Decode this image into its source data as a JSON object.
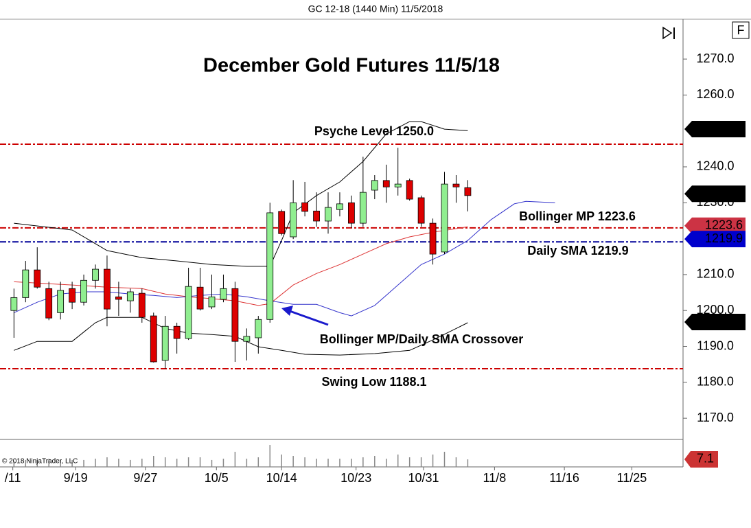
{
  "header": "GC 12-18 (1440 Min)  11/5/2018",
  "button": "F",
  "copyright": "© 2018 NinjaTrader, LLC",
  "chart_data": {
    "type": "candlestick",
    "title": "December Gold Futures 11/5/18",
    "annotations": [
      "Psyche Level 1250.0",
      "Bollinger MP 1223.6",
      "Daily SMA 1219.9",
      "Bollinger MP/Daily SMA Crossover",
      "Swing Low 1188.1"
    ],
    "x": [
      0,
      1,
      2,
      3,
      4,
      5,
      6,
      7,
      8,
      9,
      10,
      11,
      12,
      13,
      14,
      15,
      16,
      17,
      18,
      19,
      20,
      21,
      22,
      23,
      24,
      25,
      26,
      27,
      28,
      29,
      30,
      31,
      32,
      33,
      34,
      35,
      36,
      37,
      38,
      39
    ],
    "open": [
      1200.0,
      1203.6,
      1211.3,
      1206.1,
      1199.4,
      1206.1,
      1202.3,
      1208.4,
      1211.5,
      1203.8,
      1202.7,
      1204.8,
      1198.5,
      1186.1,
      1195.6,
      1192.2,
      1206.5,
      1201.0,
      1203.1,
      1206.1,
      1191.4,
      1192.4,
      1197.5,
      1227.6,
      1220.5,
      1230.0,
      1227.7,
      1224.9,
      1228.1,
      1230.0,
      1224.3,
      1233.5,
      1236.2,
      1234.4,
      1236.2,
      1231.4,
      1224.3,
      1216.3,
      1235.2,
      1234.2
    ],
    "high": [
      1206.1,
      1213.8,
      1217.6,
      1208.0,
      1208.0,
      1208.0,
      1210.0,
      1212.8,
      1215.3,
      1208.0,
      1206.1,
      1206.1,
      1199.4,
      1198.5,
      1196.6,
      1211.9,
      1211.9,
      1210.0,
      1210.0,
      1208.0,
      1195.0,
      1198.5,
      1230.0,
      1228.1,
      1236.3,
      1235.8,
      1232.9,
      1232.9,
      1232.9,
      1232.0,
      1242.8,
      1237.7,
      1240.6,
      1245.3,
      1236.7,
      1232.0,
      1225.6,
      1238.6,
      1237.7,
      1236.3
    ],
    "low": [
      1192.4,
      1202.3,
      1206.1,
      1197.3,
      1197.5,
      1200.4,
      1201.4,
      1206.1,
      1195.6,
      1198.5,
      1199.4,
      1196.6,
      1185.5,
      1183.8,
      1188.0,
      1191.8,
      1200.0,
      1200.4,
      1202.3,
      1185.7,
      1186.1,
      1188.0,
      1196.6,
      1220.9,
      1219.9,
      1226.2,
      1223.3,
      1221.4,
      1226.2,
      1223.0,
      1223.3,
      1231.0,
      1230.0,
      1232.0,
      1230.6,
      1223.3,
      1212.8,
      1215.7,
      1230.0,
      1227.6
    ],
    "close": [
      1203.6,
      1211.3,
      1206.5,
      1197.9,
      1205.6,
      1202.3,
      1208.4,
      1211.5,
      1200.4,
      1203.1,
      1205.2,
      1198.1,
      1185.7,
      1195.6,
      1192.2,
      1206.7,
      1200.4,
      1203.8,
      1206.1,
      1191.4,
      1192.8,
      1197.5,
      1227.2,
      1221.4,
      1230.0,
      1227.6,
      1224.9,
      1228.7,
      1229.7,
      1224.3,
      1232.9,
      1236.2,
      1234.4,
      1235.2,
      1231.0,
      1224.3,
      1215.7,
      1235.2,
      1234.4,
      1232.0
    ],
    "up_color": "#90ee90",
    "down_color": "#dd0000",
    "xlim": [
      -1.2,
      57.5
    ],
    "xticks": [
      {
        "value": -0.1,
        "label": "/11"
      },
      {
        "value": 5.3,
        "label": "9/19"
      },
      {
        "value": 11.3,
        "label": "9/27"
      },
      {
        "value": 17.4,
        "label": "10/5"
      },
      {
        "value": 23.0,
        "label": "10/14"
      },
      {
        "value": 29.4,
        "label": "10/23"
      },
      {
        "value": 35.2,
        "label": "10/31"
      },
      {
        "value": 41.3,
        "label": "11/8"
      },
      {
        "value": 47.3,
        "label": "11/16"
      },
      {
        "value": 53.1,
        "label": "11/25"
      }
    ],
    "ylim": [
      1164.1,
      1281.1
    ],
    "yticks": [
      {
        "value": 1270,
        "label": "1270.0"
      },
      {
        "value": 1260,
        "label": "1260.0"
      },
      {
        "value": 1240,
        "label": "1240.0"
      },
      {
        "value": 1230,
        "label": "1230.0"
      },
      {
        "value": 1210,
        "label": "1210.0"
      },
      {
        "value": 1200,
        "label": "1200.0"
      },
      {
        "value": 1190,
        "label": "1190.0"
      },
      {
        "value": 1180,
        "label": "1180.0"
      },
      {
        "value": 1170,
        "label": "1170.0"
      }
    ],
    "overlays": [
      {
        "color": "#000000",
        "x": [
          0,
          5,
          8,
          11,
          14,
          17,
          20,
          22,
          23,
          24,
          26,
          28,
          30,
          32,
          34,
          35,
          37,
          39
        ],
        "values": [
          1224.3,
          1222.4,
          1216.7,
          1214.7,
          1213.8,
          1212.8,
          1212.3,
          1212.3,
          1219.5,
          1227.2,
          1232.0,
          1235.8,
          1241.5,
          1249.2,
          1252.6,
          1252.6,
          1250.5,
          1250.1
        ]
      },
      {
        "color": "#000000",
        "x": [
          0,
          2,
          5,
          7,
          8,
          11,
          13,
          15,
          17,
          19,
          21,
          23,
          25,
          28,
          31,
          34,
          36,
          38,
          39
        ],
        "values": [
          1188.9,
          1191.4,
          1191.4,
          1196.6,
          1198.1,
          1198.1,
          1195.0,
          1193.7,
          1193.3,
          1192.8,
          1189.9,
          1188.9,
          1187.8,
          1187.6,
          1188.0,
          1188.9,
          1191.8,
          1195.0,
          1196.6
        ]
      },
      {
        "color": "#dd3333",
        "x": [
          0,
          5,
          8,
          11,
          13,
          15,
          17,
          19,
          21,
          22,
          24,
          26,
          28,
          30,
          32,
          34,
          36,
          38,
          39
        ],
        "values": [
          1208.0,
          1207.1,
          1206.5,
          1206.1,
          1204.6,
          1203.8,
          1203.3,
          1202.7,
          1201.4,
          1201.9,
          1207.1,
          1210.3,
          1212.8,
          1215.7,
          1218.6,
          1220.5,
          1221.8,
          1222.8,
          1223.3
        ]
      },
      {
        "color": "#3333cc",
        "x": [
          0,
          2,
          4,
          6,
          8,
          10,
          12,
          14,
          16,
          18,
          20,
          22,
          24,
          26,
          28,
          29,
          31,
          33,
          35,
          37,
          39,
          41,
          43,
          44,
          46.5
        ],
        "values": [
          1199.4,
          1202.3,
          1204.6,
          1205.2,
          1205.2,
          1204.6,
          1204.2,
          1203.6,
          1204.2,
          1204.6,
          1203.8,
          1202.7,
          1201.7,
          1201.7,
          1199.4,
          1198.5,
          1201.4,
          1207.1,
          1212.8,
          1215.7,
          1219.5,
          1225.3,
          1229.7,
          1230.4,
          1230.0
        ]
      }
    ],
    "hlines": [
      {
        "value": 1246.3,
        "color": "#cc0000"
      },
      {
        "value": 1223.0,
        "color": "#cc0000"
      },
      {
        "value": 1219.1,
        "color": "#000099"
      },
      {
        "value": 1183.8,
        "color": "#cc0000"
      }
    ],
    "price_badges": [
      {
        "value": 1250.5,
        "color": "#000000"
      },
      {
        "value": 1232.5,
        "color": "#000000"
      },
      {
        "value": 1223.6,
        "color": "#cc3344"
      },
      {
        "value": 1219.9,
        "color": "#0000cc"
      },
      {
        "value": 1196.8,
        "color": "#000000"
      }
    ],
    "volume": {
      "values": [
        5.2,
        6.5,
        6.5,
        7.7,
        6.5,
        6.5,
        6.5,
        7.7,
        9.0,
        7.7,
        6.5,
        7.7,
        10.3,
        9.0,
        7.7,
        9.0,
        9.0,
        6.5,
        7.7,
        14.2,
        7.7,
        9.0,
        20.6,
        11.6,
        10.3,
        9.0,
        7.7,
        7.7,
        7.7,
        7.7,
        9.0,
        10.3,
        7.7,
        11.6,
        9.0,
        9.0,
        11.6,
        14.2,
        9.0,
        7.1
      ],
      "ylim": [
        0,
        24.5
      ],
      "color": "#888888",
      "badge": {
        "value": 7.1,
        "color": "#cc3333"
      }
    }
  }
}
